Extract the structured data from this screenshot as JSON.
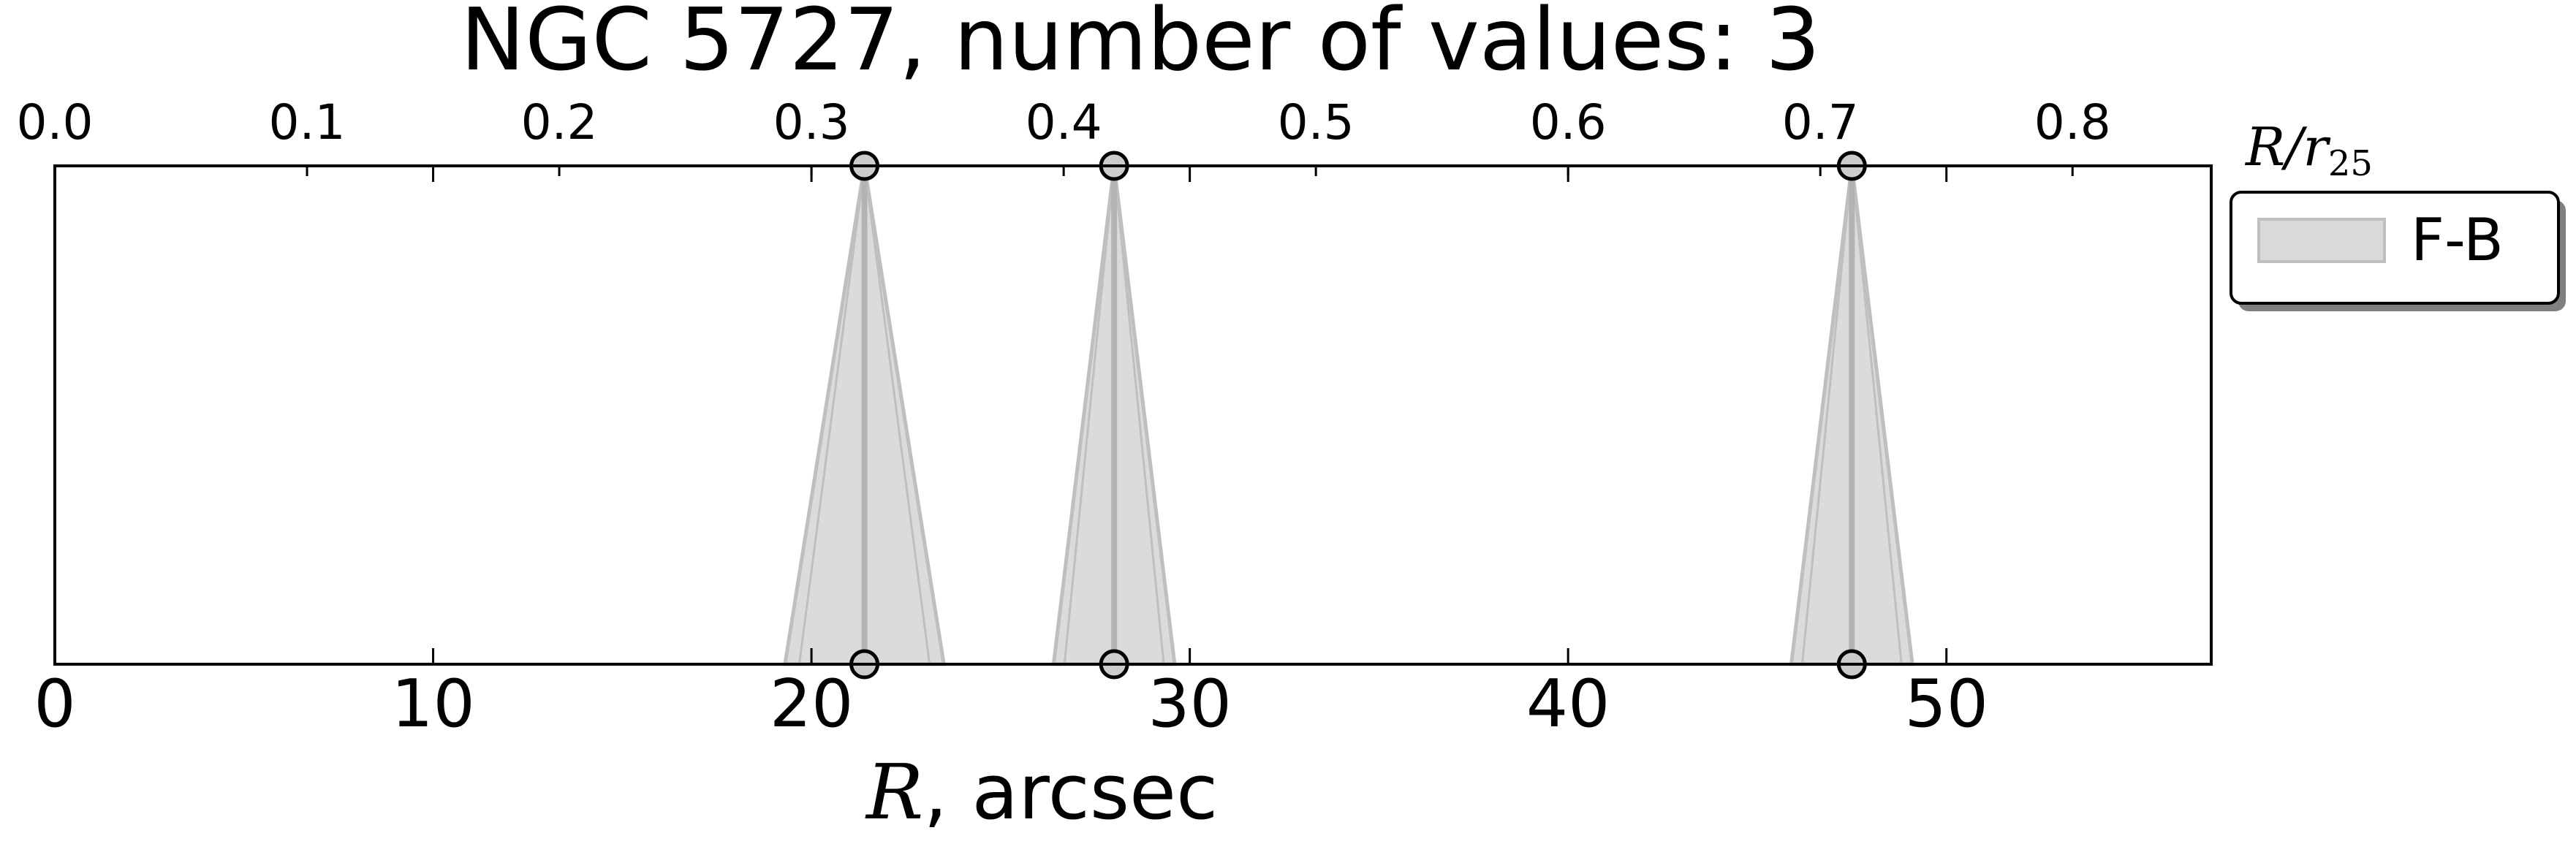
{
  "chart_data": {
    "type": "scatter",
    "title": "NGC 5727, number of values: 3",
    "xlabel_var": "R",
    "xlabel_rest": ", arcsec",
    "top_xlabel_var": "R/r",
    "top_xlabel_sub": "25",
    "xlim": [
      0,
      57
    ],
    "x_ticks": [
      0,
      10,
      20,
      30,
      40,
      50
    ],
    "top_xlim": [
      0.0,
      0.855
    ],
    "top_x_ticks": [
      "0.0",
      "0.1",
      "0.2",
      "0.3",
      "0.4",
      "0.5",
      "0.6",
      "0.7",
      "0.8"
    ],
    "legend": {
      "position": "outside-top-right",
      "label": "F-B"
    },
    "series": [
      {
        "name": "F-B",
        "color": "#d9d9d9",
        "edge_color": "#bfbfbf",
        "points": [
          {
            "x": 21.4,
            "half_width_bottom": 2.1
          },
          {
            "x": 28.0,
            "half_width_bottom": 1.6
          },
          {
            "x": 47.5,
            "half_width_bottom": 1.6
          }
        ]
      }
    ],
    "grid": false
  }
}
